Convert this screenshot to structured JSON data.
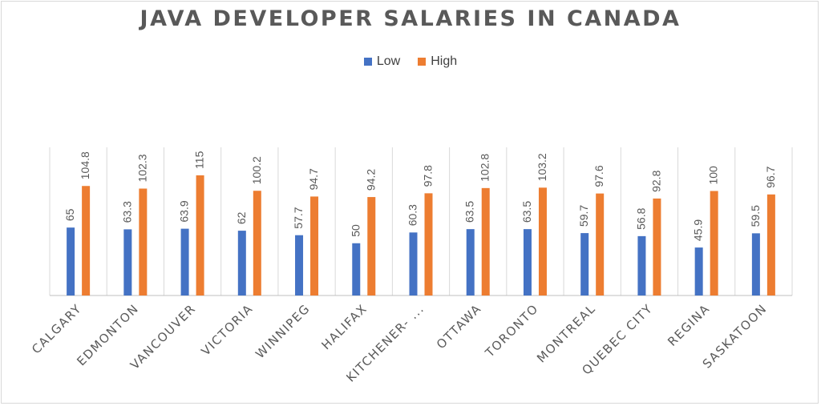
{
  "chart_data": {
    "type": "bar",
    "title": "JAVA DEVELOPER SALARIES IN CANADA",
    "categories": [
      "CALGARY",
      "EDMONTON",
      "VANCOUVER",
      "VICTORIA",
      "WINNIPEG",
      "HALIFAX",
      "KITCHENER- ...",
      "OTTAWA",
      "TORONTO",
      "MONTREAL",
      "QUEBEC CITY",
      "REGINA",
      "SASKATOON"
    ],
    "series": [
      {
        "name": "Low",
        "color": "#4472c4",
        "values": [
          65,
          63.3,
          63.9,
          62,
          57.7,
          50,
          60.3,
          63.5,
          63.5,
          59.7,
          56.8,
          45.9,
          59.5
        ]
      },
      {
        "name": "High",
        "color": "#ed7d31",
        "values": [
          104.8,
          102.3,
          115,
          100.2,
          94.7,
          94.2,
          97.8,
          102.8,
          103.2,
          97.6,
          92.8,
          100,
          96.7
        ]
      }
    ],
    "ylim": [
      0,
      115
    ],
    "grid": false,
    "legend_position": "top"
  }
}
